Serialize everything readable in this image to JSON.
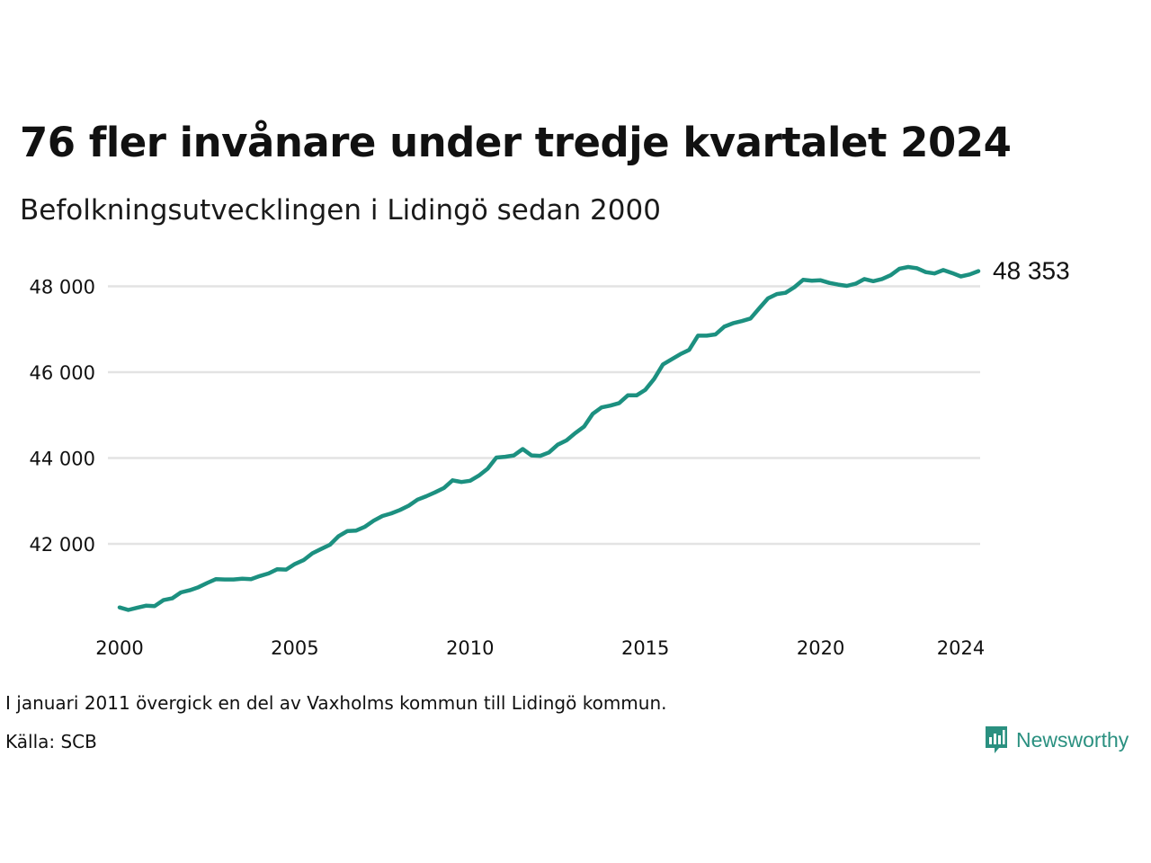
{
  "title": "76 fler invånare under tredje kvartalet 2024",
  "subtitle": "Befolkningsutvecklingen i Lidingö sedan 2000",
  "footnote": "I januari 2011 övergick en del av Vaxholms kommun till Lidingö kommun.",
  "source": "Källa: SCB",
  "brand": {
    "name": "Newsworthy",
    "color": "#2a9080"
  },
  "chart_data": {
    "type": "line",
    "title": "76 fler invånare under tredje kvartalet 2024",
    "subtitle": "Befolkningsutvecklingen i Lidingö sedan 2000",
    "xlabel": "",
    "ylabel": "",
    "xlim": [
      2000,
      2024.75
    ],
    "ylim": [
      40000,
      49000
    ],
    "grid": true,
    "line_color": "#1c9080",
    "grid_color": "#e3e3e3",
    "y_ticks": [
      42000,
      44000,
      46000,
      48000
    ],
    "y_tick_labels": [
      "42 000",
      "44 000",
      "46 000",
      "48 000"
    ],
    "x_ticks": [
      2000,
      2005,
      2010,
      2015,
      2020,
      2024
    ],
    "x_tick_labels": [
      "2000",
      "2005",
      "2010",
      "2015",
      "2020",
      "2024"
    ],
    "last_value_label": "48 353",
    "series": [
      {
        "x": [
          2000.0,
          2000.25,
          2000.5,
          2000.75,
          2001.0,
          2001.25,
          2001.5,
          2001.75,
          2002.0,
          2002.25,
          2002.5,
          2002.75,
          2003.0,
          2003.25,
          2003.5,
          2003.75,
          2004.0,
          2004.25,
          2004.5,
          2004.75,
          2005.0,
          2005.25,
          2005.5,
          2005.75,
          2006.0,
          2006.25,
          2006.5,
          2006.75,
          2007.0,
          2007.25,
          2007.5,
          2007.75,
          2008.0,
          2008.25,
          2008.5,
          2008.75,
          2009.0,
          2009.25,
          2009.5,
          2009.75,
          2010.0,
          2010.25,
          2010.5,
          2010.75,
          2011.0,
          2011.25,
          2011.5,
          2011.75,
          2012.0,
          2012.25,
          2012.5,
          2012.75,
          2013.0,
          2013.25,
          2013.5,
          2013.75,
          2014.0,
          2014.25,
          2014.5,
          2014.75,
          2015.0,
          2015.25,
          2015.5,
          2015.75,
          2016.0,
          2016.25,
          2016.5,
          2016.75,
          2017.0,
          2017.25,
          2017.5,
          2017.75,
          2018.0,
          2018.25,
          2018.5,
          2018.75,
          2019.0,
          2019.25,
          2019.5,
          2019.75,
          2020.0,
          2020.25,
          2020.5,
          2020.75,
          2021.0,
          2021.25,
          2021.5,
          2021.75,
          2022.0,
          2022.25,
          2022.5,
          2022.75,
          2023.0,
          2023.25,
          2023.5,
          2023.75,
          2024.0,
          2024.25,
          2024.5
        ],
        "values": [
          40520,
          40460,
          40510,
          40560,
          40550,
          40690,
          40730,
          40870,
          40920,
          40990,
          41090,
          41180,
          41170,
          41170,
          41190,
          41180,
          41250,
          41310,
          41410,
          41400,
          41530,
          41620,
          41780,
          41880,
          41980,
          42180,
          42300,
          42310,
          42400,
          42540,
          42650,
          42710,
          42790,
          42890,
          43030,
          43110,
          43200,
          43300,
          43480,
          43440,
          43470,
          43590,
          43750,
          44010,
          44030,
          44060,
          44210,
          44060,
          44050,
          44130,
          44310,
          44410,
          44580,
          44730,
          45030,
          45180,
          45220,
          45280,
          45460,
          45460,
          45590,
          45840,
          46180,
          46300,
          46420,
          46520,
          46850,
          46850,
          46880,
          47060,
          47140,
          47190,
          47250,
          47490,
          47720,
          47820,
          47850,
          47980,
          48150,
          48130,
          48140,
          48080,
          48040,
          48010,
          48060,
          48170,
          48120,
          48170,
          48260,
          48410,
          48450,
          48420,
          48330,
          48300,
          48380,
          48310,
          48230,
          48277,
          48353
        ]
      }
    ]
  }
}
